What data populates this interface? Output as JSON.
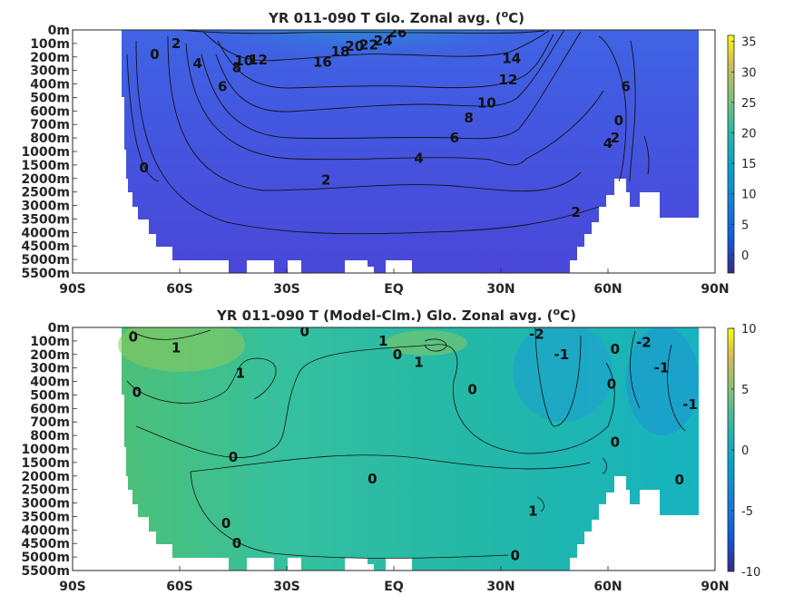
{
  "chart_data": [
    {
      "type": "heatmap",
      "title": "YR 011-090 T Glo. Zonal avg. (",
      "title_unit": "C)",
      "title_superscript": "o",
      "x_tick_labels": [
        "90S",
        "60S",
        "30S",
        "EQ",
        "30N",
        "60N",
        "90N"
      ],
      "x_ticks": [
        -90,
        -60,
        -30,
        0,
        30,
        60,
        90
      ],
      "y_tick_labels": [
        "0m",
        "100m",
        "200m",
        "300m",
        "400m",
        "500m",
        "600m",
        "700m",
        "800m",
        "1000m",
        "1500m",
        "2000m",
        "2500m",
        "3000m",
        "3500m",
        "4000m",
        "4500m",
        "5000m",
        "5500m"
      ],
      "colorbar": {
        "ticks": [
          0,
          5,
          10,
          15,
          20,
          25,
          30,
          35
        ],
        "tick_labels": [
          "0",
          "5",
          "10",
          "15",
          "20",
          "25",
          "30",
          "35"
        ],
        "range": [
          -3,
          36
        ],
        "colormap": "parula"
      },
      "contour_labels": [
        {
          "text": "0",
          "lat": -67,
          "level": 1.8
        },
        {
          "text": "2",
          "lat": -61,
          "level": 1.0
        },
        {
          "text": "4",
          "lat": -55,
          "level": 2.5
        },
        {
          "text": "6",
          "lat": -48,
          "level": 4.2
        },
        {
          "text": "8",
          "lat": -44,
          "level": 2.8
        },
        {
          "text": "10",
          "lat": -42,
          "level": 2.3
        },
        {
          "text": "12",
          "lat": -38,
          "level": 2.2
        },
        {
          "text": "16",
          "lat": -20,
          "level": 2.4
        },
        {
          "text": "18",
          "lat": -15,
          "level": 1.6
        },
        {
          "text": "20",
          "lat": -11,
          "level": 1.2
        },
        {
          "text": "22",
          "lat": -7,
          "level": 1.1
        },
        {
          "text": "24",
          "lat": -3,
          "level": 0.8
        },
        {
          "text": "26",
          "lat": 1,
          "level": 0.2
        },
        {
          "text": "14",
          "lat": 33,
          "level": 2.1
        },
        {
          "text": "12",
          "lat": 32,
          "level": 3.7
        },
        {
          "text": "10",
          "lat": 26,
          "level": 5.4
        },
        {
          "text": "8",
          "lat": 21,
          "level": 6.5
        },
        {
          "text": "6",
          "lat": 17,
          "level": 8.0
        },
        {
          "text": "4",
          "lat": 7,
          "level": 9.5
        },
        {
          "text": "2",
          "lat": -19,
          "level": 11.1
        },
        {
          "text": "0",
          "lat": -70,
          "level": 10.2
        },
        {
          "text": "2",
          "lat": 51,
          "level": 13.5
        },
        {
          "text": "6",
          "lat": 65,
          "level": 4.2
        },
        {
          "text": "0",
          "lat": 63,
          "level": 6.7
        },
        {
          "text": "2",
          "lat": 62,
          "level": 8.0
        },
        {
          "text": "4",
          "lat": 60,
          "level": 8.4
        }
      ]
    },
    {
      "type": "heatmap",
      "title": "YR 011-090 T (Model-Clm.) Glo. Zonal avg. (",
      "title_unit": "C)",
      "title_superscript": "o",
      "x_tick_labels": [
        "90S",
        "60S",
        "30S",
        "EQ",
        "30N",
        "60N",
        "90N"
      ],
      "x_ticks": [
        -90,
        -60,
        -30,
        0,
        30,
        60,
        90
      ],
      "y_tick_labels": [
        "0m",
        "100m",
        "200m",
        "300m",
        "400m",
        "500m",
        "600m",
        "700m",
        "800m",
        "1000m",
        "1500m",
        "2000m",
        "2500m",
        "3000m",
        "3500m",
        "4000m",
        "4500m",
        "5000m",
        "5500m"
      ],
      "colorbar": {
        "ticks": [
          -10,
          -5,
          0,
          5,
          10
        ],
        "tick_labels": [
          "-10",
          "-5",
          "0",
          "5",
          "10"
        ],
        "range": [
          -10,
          10
        ],
        "colormap": "parula"
      },
      "contour_labels": [
        {
          "text": "0",
          "lat": -73,
          "level": 0.7
        },
        {
          "text": "1",
          "lat": -61,
          "level": 1.5
        },
        {
          "text": "1",
          "lat": -43,
          "level": 3.4
        },
        {
          "text": "0",
          "lat": -72,
          "level": 4.8
        },
        {
          "text": "0",
          "lat": -25,
          "level": 0.3
        },
        {
          "text": "1",
          "lat": -3,
          "level": 1.0
        },
        {
          "text": "0",
          "lat": 1,
          "level": 2.0
        },
        {
          "text": "1",
          "lat": 7,
          "level": 2.6
        },
        {
          "text": "0",
          "lat": 22,
          "level": 4.6
        },
        {
          "text": "0",
          "lat": -45,
          "level": 9.6
        },
        {
          "text": "0",
          "lat": -6,
          "level": 11.2
        },
        {
          "text": "0",
          "lat": -47,
          "level": 14.5
        },
        {
          "text": "0",
          "lat": -44,
          "level": 16.0
        },
        {
          "text": "1",
          "lat": 39,
          "level": 13.6
        },
        {
          "text": "0",
          "lat": 34,
          "level": 16.9
        },
        {
          "text": "-2",
          "lat": 40,
          "level": 0.5
        },
        {
          "text": "-1",
          "lat": 47,
          "level": 2.0
        },
        {
          "text": "0",
          "lat": 62,
          "level": 1.6
        },
        {
          "text": "-2",
          "lat": 70,
          "level": 1.1
        },
        {
          "text": "0",
          "lat": 61,
          "level": 4.2
        },
        {
          "text": "-1",
          "lat": 75,
          "level": 3.0
        },
        {
          "text": "-1",
          "lat": 83,
          "level": 5.7
        },
        {
          "text": "0",
          "lat": 62,
          "level": 8.5
        },
        {
          "text": "0",
          "lat": 80,
          "level": 11.3
        }
      ]
    }
  ]
}
